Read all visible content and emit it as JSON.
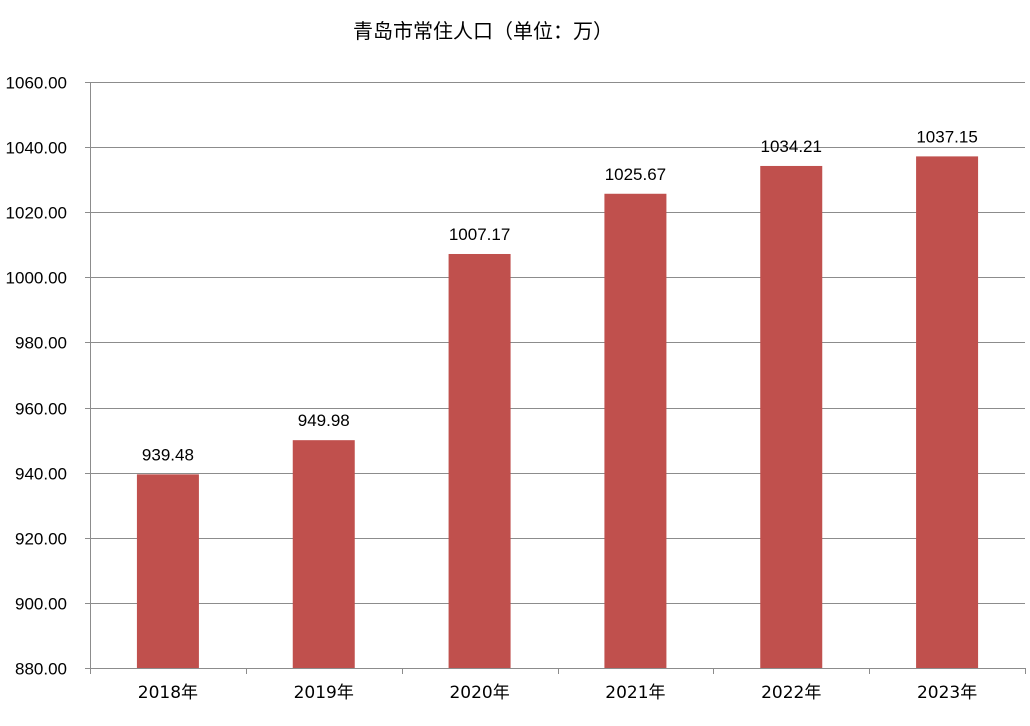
{
  "chart_data": {
    "type": "bar",
    "title": "青岛市常住人口（单位：万）",
    "categories": [
      "2018年",
      "2019年",
      "2020年",
      "2021年",
      "2022年",
      "2023年"
    ],
    "values": [
      939.48,
      949.98,
      1007.17,
      1025.67,
      1034.21,
      1037.15
    ],
    "value_labels": [
      "939.48",
      "949.98",
      "1007.17",
      "1025.67",
      "1034.21",
      "1037.15"
    ],
    "ylim": [
      880,
      1060
    ],
    "yticks": [
      "880.00",
      "900.00",
      "920.00",
      "940.00",
      "960.00",
      "980.00",
      "1000.00",
      "1020.00",
      "1040.00",
      "1060.00"
    ],
    "xlabel": "",
    "ylabel": "",
    "grid": true,
    "legend": "none",
    "bar_color": "#c0504d"
  }
}
